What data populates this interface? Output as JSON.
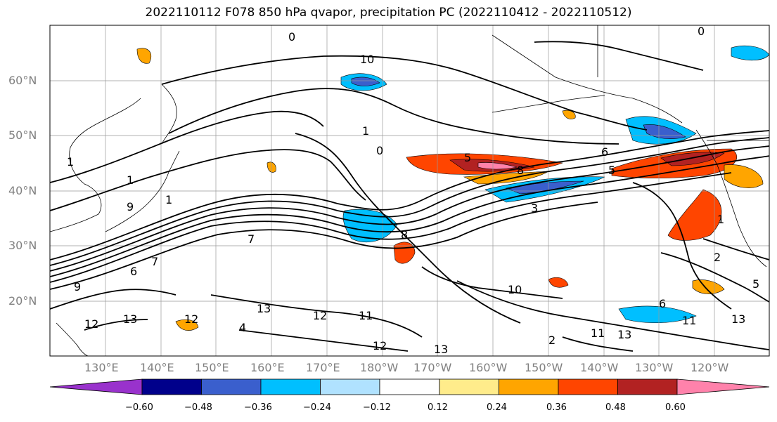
{
  "title": "2022110112 F078 850 hPa qvapor, precipitation PC (2022110412 - 2022110512)",
  "lat_labels": [
    "60°N",
    "50°N",
    "40°N",
    "30°N",
    "20°N"
  ],
  "lon_labels": [
    "130°E",
    "140°E",
    "150°E",
    "160°E",
    "170°E",
    "180°W",
    "170°W",
    "160°W",
    "150°W",
    "140°W",
    "130°W",
    "120°W"
  ],
  "contour_labels": [
    "0",
    "10",
    "1",
    "0",
    "1",
    "1",
    "6",
    "5",
    "1",
    "9",
    "8",
    "7",
    "3",
    "5",
    "6",
    "7",
    "8",
    "9",
    "13",
    "12",
    "11",
    "12",
    "13",
    "10",
    "4",
    "2",
    "13",
    "12",
    "11",
    "12",
    "13",
    "11",
    "13",
    "6",
    "5",
    "2",
    "1",
    "0"
  ],
  "colorbar": {
    "ticks": [
      "−0.60",
      "−0.48",
      "−0.36",
      "−0.24",
      "−0.12",
      "0.12",
      "0.24",
      "0.36",
      "0.48",
      "0.60"
    ],
    "colors": [
      "#9932cc",
      "#00008b",
      "#3a5fcd",
      "#00bfff",
      "#b0e2ff",
      "#ffffff",
      "#ffec8b",
      "#ffa500",
      "#ff4500",
      "#b22222",
      "#ff82ab"
    ]
  }
}
